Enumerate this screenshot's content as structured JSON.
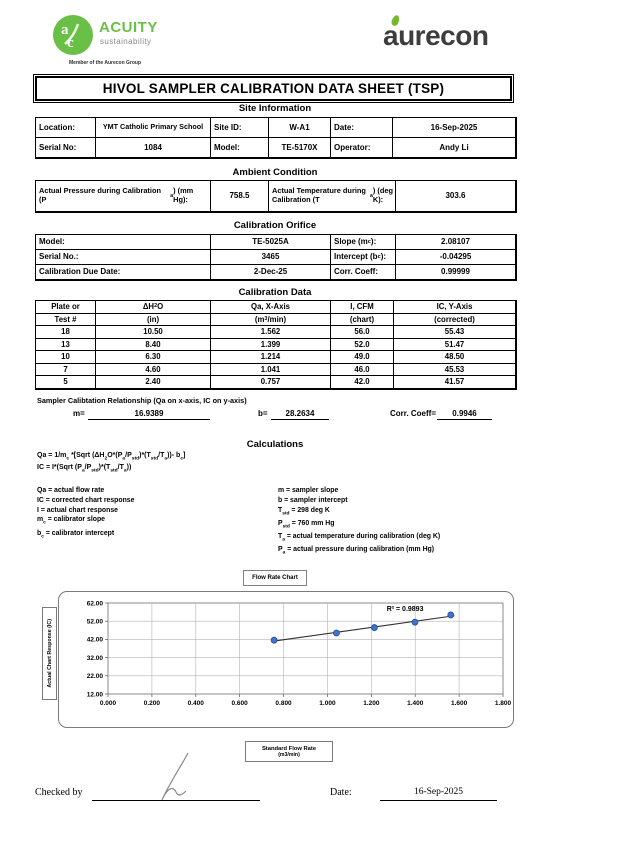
{
  "colors": {
    "acuity_green": "#6abf47",
    "aurecon_dark": "#3d3d3d",
    "aurecon_leaf": "#76b82a",
    "point_blue": "#4472c4",
    "grid_gray": "#b3b3b3"
  },
  "header": {
    "acuity": {
      "name": "ACUITY",
      "tagline": "sustainability",
      "member": "Member of the Aurecon Group",
      "monogram_a": "a",
      "monogram_c": "c"
    },
    "aurecon_wordmark": "aurecon",
    "title": "HIVOL SAMPLER CALIBRATION  DATA SHEET (TSP)"
  },
  "site_information": {
    "heading": "Site Information",
    "location_label": "Location:",
    "location": "YMT Catholic Primary School",
    "site_id_label": "Site ID:",
    "site_id": "W-A1",
    "date_label": "Date:",
    "date": "16-Sep-2025",
    "serial_label": "Serial No:",
    "serial": "1084",
    "model_label": "Model:",
    "model": "TE-5170X",
    "operator_label": "Operator:",
    "operator": "Andy Li"
  },
  "ambient_condition": {
    "heading": "Ambient Condition",
    "pressure_label": "Actual Pressure during Calibration (P<sub>a</sub>) (mm Hg):",
    "pressure": "758.5",
    "temperature_label": "Actual Temperature during Calibration (T<sub>a</sub>) (deg K):",
    "temperature": "303.6"
  },
  "calibration_orifice": {
    "heading": "Calibration Orifice",
    "rows": [
      {
        "label": "Model:",
        "value": "TE-5025A",
        "label2": "Slope (m<sub>c</sub>):",
        "value2": "2.08107"
      },
      {
        "label": "Serial No.:",
        "value": "3465",
        "label2": "Intercept (b<sub>c</sub>):",
        "value2": "-0.04295"
      },
      {
        "label": "Calibration Due Date:",
        "value": "2-Dec-25",
        "label2": "Corr. Coeff:",
        "value2": "0.99999"
      }
    ]
  },
  "calibration_data": {
    "heading": "Calibration Data",
    "columns_line1": [
      "Plate or",
      "ΔH<sub>2</sub>O",
      "Qa, X-Axis",
      "I, CFM",
      "IC, Y-Axis"
    ],
    "columns_line2": [
      "Test #",
      "(in)",
      "(m<sup>3</sup>/min)",
      "(chart)",
      "(corrected)"
    ],
    "rows": [
      [
        "18",
        "10.50",
        "1.562",
        "56.0",
        "55.43"
      ],
      [
        "13",
        "8.40",
        "1.399",
        "52.0",
        "51.47"
      ],
      [
        "10",
        "6.30",
        "1.214",
        "49.0",
        "48.50"
      ],
      [
        "7",
        "4.60",
        "1.041",
        "46.0",
        "45.53"
      ],
      [
        "5",
        "2.40",
        "0.757",
        "42.0",
        "41.57"
      ]
    ]
  },
  "relationship": {
    "caption": "Sampler Calibtation Relationship (Qa on x-axis, IC on y-axis)",
    "m_label": "m=",
    "m": "16.9389",
    "b_label": "b=",
    "b": "28.2634",
    "corr_label": "Corr. Coeff=",
    "corr": "0.9946"
  },
  "calculations": {
    "heading": "Calculations",
    "formula1": "Qa = 1/m<sub>c</sub> *[Sqrt (ΔH<sub>2</sub>O*(P<sub>a</sub>/P<sub>std</sub>)*(T<sub>std</sub>/T<sub>a</sub>))- b<sub>c</sub>]",
    "formula2": "IC = I*(Sqrt (P<sub>a</sub>/P<sub>std</sub>)*(T<sub>std</sub>/T<sub>a</sub>))",
    "definitions_left": [
      "Qa = actual flow rate",
      "IC = corrected chart response",
      "I = actual chart response",
      "m<sub>c</sub>  = calibrator slope",
      "b<sub>c</sub>  = calibrator intercept"
    ],
    "definitions_right": [
      "m = sampler slope",
      "b  = sampler intercept",
      "T<sub>std</sub> = 298 deg K",
      "P<sub>std</sub> = 760 mm Hg",
      "T<sub>a</sub> = actual temperature during calibration (deg K)",
      "P<sub>a</sub> = actual pressure during calibration (mm Hg)"
    ]
  },
  "chart_data": {
    "type": "scatter",
    "title": "Flow Rate Chart",
    "ylabel": "Actual Chart Response (IC)",
    "xlabel_line1": "Standard Flow Rate",
    "xlabel_line2": "(m3/min)",
    "x": [
      0.757,
      1.041,
      1.214,
      1.399,
      1.562
    ],
    "y": [
      41.57,
      45.53,
      48.5,
      51.47,
      55.43
    ],
    "xlim": [
      0,
      1.8
    ],
    "ylim": [
      12,
      62
    ],
    "xtick_labels": [
      "0.000",
      "0.200",
      "0.400",
      "0.600",
      "0.800",
      "1.000",
      "1.200",
      "1.400",
      "1.600",
      "1.800"
    ],
    "ytick_labels": [
      "12.00",
      "22.00",
      "32.00",
      "42.00",
      "52.00",
      "62.00"
    ],
    "grid": true,
    "legend": false,
    "trendline": {
      "slope": 16.9389,
      "intercept": 28.2634,
      "x_start": 0.745,
      "x_end": 1.578
    },
    "annotation": "R² = 0.9893",
    "annotation_xy": [
      1.27,
      57.5
    ],
    "point_color": "#4472c4"
  },
  "footer": {
    "checked_by_label": "Checked by",
    "date_label": "Date:",
    "date_value": "16-Sep-2025"
  }
}
